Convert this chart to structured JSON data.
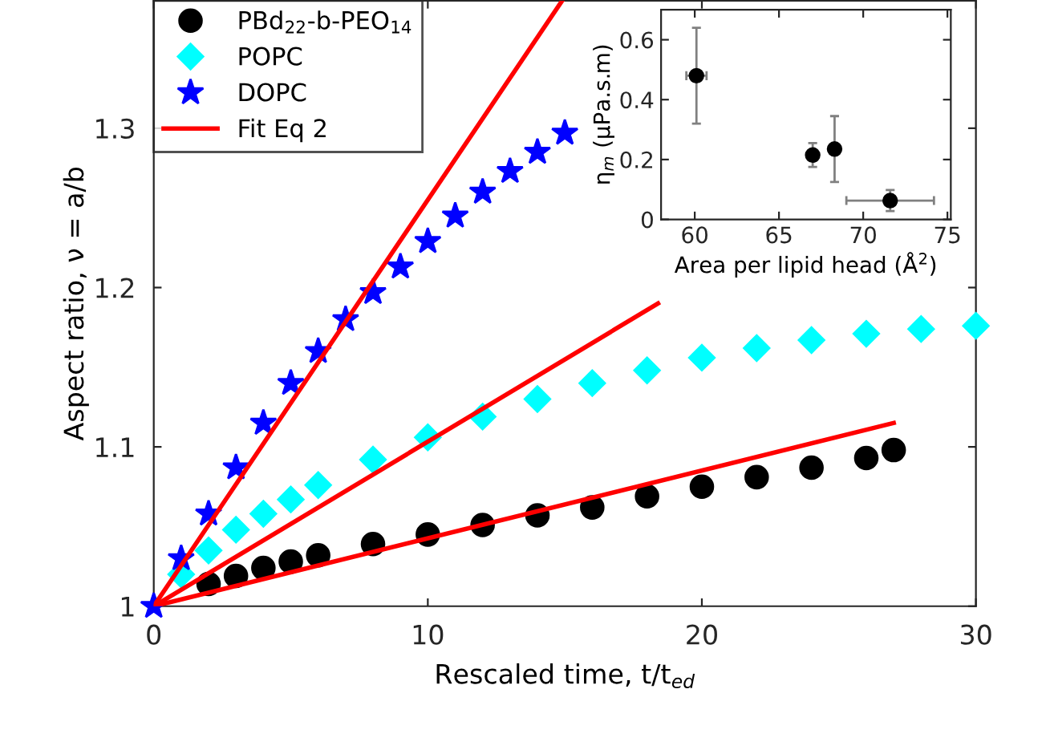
{
  "chart_data": [
    {
      "type": "scatter",
      "xlabel": "Rescaled time, t/t$_{ed}$",
      "ylabel": "Aspect ratio, ν = a/b",
      "xlim": [
        0,
        30
      ],
      "ylim": [
        1,
        1.38
      ],
      "xticks": [
        0,
        10,
        20,
        30
      ],
      "yticks": [
        1,
        1.1,
        1.2,
        1.3
      ],
      "legend": "top left",
      "grid": false,
      "series": [
        {
          "name": "PBd$_{22}$-b-PEO$_{14}$",
          "marker": "circle",
          "color": "#000000",
          "x": [
            2,
            3,
            4,
            5,
            6,
            8,
            10,
            12,
            14,
            16,
            18,
            20,
            22,
            24,
            26,
            27
          ],
          "values": [
            1.014,
            1.019,
            1.024,
            1.028,
            1.032,
            1.039,
            1.045,
            1.051,
            1.057,
            1.062,
            1.069,
            1.075,
            1.081,
            1.087,
            1.093,
            1.098
          ]
        },
        {
          "name": "POPC",
          "marker": "diamond",
          "color": "#00ffff",
          "x": [
            1,
            2,
            3,
            4,
            5,
            6,
            8,
            10,
            12,
            14,
            16,
            18,
            20,
            22,
            24,
            26,
            28,
            30
          ],
          "values": [
            1.02,
            1.035,
            1.048,
            1.058,
            1.067,
            1.076,
            1.092,
            1.106,
            1.119,
            1.13,
            1.14,
            1.148,
            1.156,
            1.162,
            1.167,
            1.171,
            1.174,
            1.176
          ]
        },
        {
          "name": "DOPC",
          "marker": "star",
          "color": "#0000ff",
          "x": [
            0,
            1,
            2,
            3,
            4,
            5,
            6,
            7,
            8,
            9,
            10,
            11,
            12,
            13,
            14,
            15
          ],
          "values": [
            1.0,
            1.03,
            1.058,
            1.087,
            1.115,
            1.14,
            1.16,
            1.18,
            1.197,
            1.213,
            1.229,
            1.245,
            1.26,
            1.273,
            1.285,
            1.297
          ]
        },
        {
          "name": "Fit Eq 2",
          "type": "line",
          "line_style": "solid",
          "color": "#ff0000",
          "x": [
            0,
            14.9
          ],
          "values": [
            1.0,
            1.38
          ]
        },
        {
          "type": "line",
          "line_style": "solid",
          "color": "#ff0000",
          "x": [
            0,
            18.4
          ],
          "values": [
            1.0,
            1.19
          ]
        },
        {
          "type": "line",
          "line_style": "solid",
          "color": "#ff0000",
          "x": [
            0,
            27
          ],
          "values": [
            1.0,
            1.115
          ]
        }
      ]
    },
    {
      "type": "scatter",
      "xlabel": "Area per lipid head (Å$^{2}$)",
      "ylabel": "η$_{m}$ (μPa.s.m)",
      "xlim": [
        58,
        75.2
      ],
      "ylim": [
        0,
        0.7
      ],
      "xticks": [
        60,
        65,
        70,
        75
      ],
      "yticks": [
        0,
        0.2,
        0.4,
        0.6
      ],
      "grid": false,
      "legend": false,
      "series": [
        {
          "marker": "circle",
          "color": "#000000",
          "x": [
            60.1,
            67.0,
            68.3,
            71.6
          ],
          "values": [
            0.48,
            0.215,
            0.235,
            0.063
          ],
          "errors": [
            [
              0.32,
              0.64
            ],
            [
              0.175,
              0.255
            ],
            [
              0.125,
              0.345
            ],
            [
              0.028,
              0.098
            ]
          ],
          "xerrors": [
            [
              59.5,
              60.7
            ],
            [
              66.8,
              67.2
            ],
            [
              68.2,
              68.4
            ],
            [
              69.0,
              74.2
            ]
          ]
        }
      ]
    }
  ]
}
